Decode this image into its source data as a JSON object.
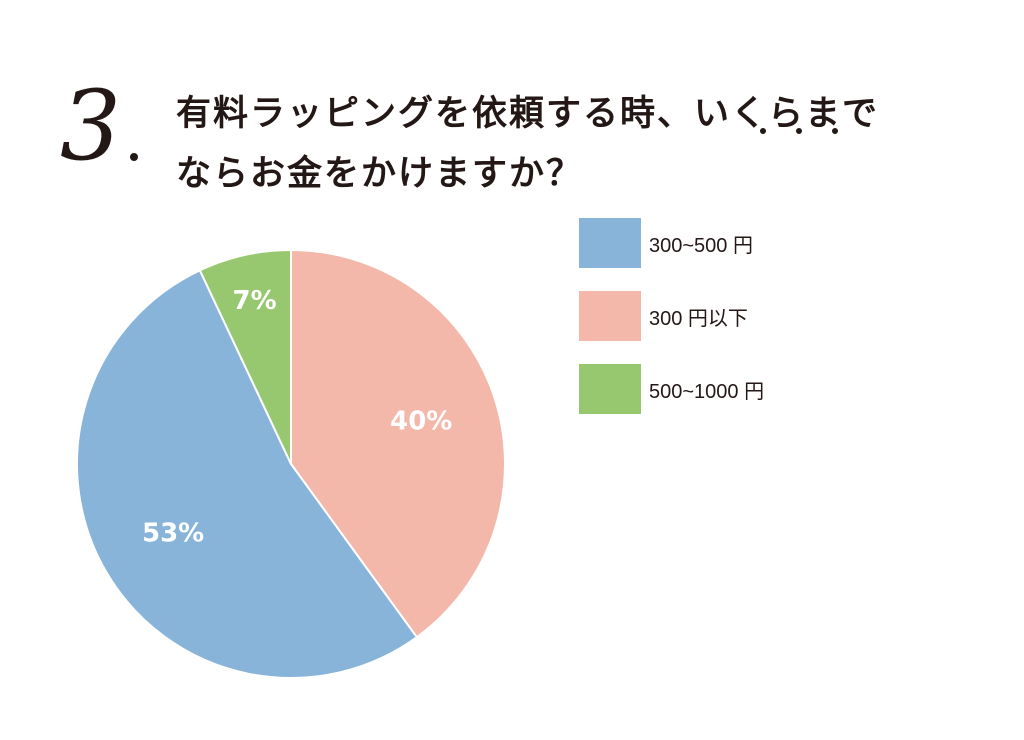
{
  "question": {
    "number": "3",
    "line1": "有料ラッピングを依頼する時、いくらまで",
    "line2": "ならお金をかけますか？"
  },
  "colors": {
    "blue": "#87b4d8",
    "pink": "#f3b8aa",
    "green": "#97c86f",
    "text": "#231815"
  },
  "chart_data": {
    "type": "pie",
    "title": "有料ラッピングを依頼する時、いくらまでならお金をかけますか？",
    "slices": [
      {
        "label": "300円以下",
        "value": 40,
        "display": "40%",
        "color": "#f3b8aa"
      },
      {
        "label": "300~500 円",
        "value": 53,
        "display": "53%",
        "color": "#87b4d8"
      },
      {
        "label": "500~1000 円",
        "value": 7,
        "display": "7%",
        "color": "#97c86f"
      }
    ],
    "legend": [
      {
        "label": "300~500 円",
        "color": "#87b4d8"
      },
      {
        "label": "300 円以下",
        "color": "#f3b8aa"
      },
      {
        "label": "500~1000 円",
        "color": "#97c86f"
      }
    ],
    "legend_position": "right"
  }
}
